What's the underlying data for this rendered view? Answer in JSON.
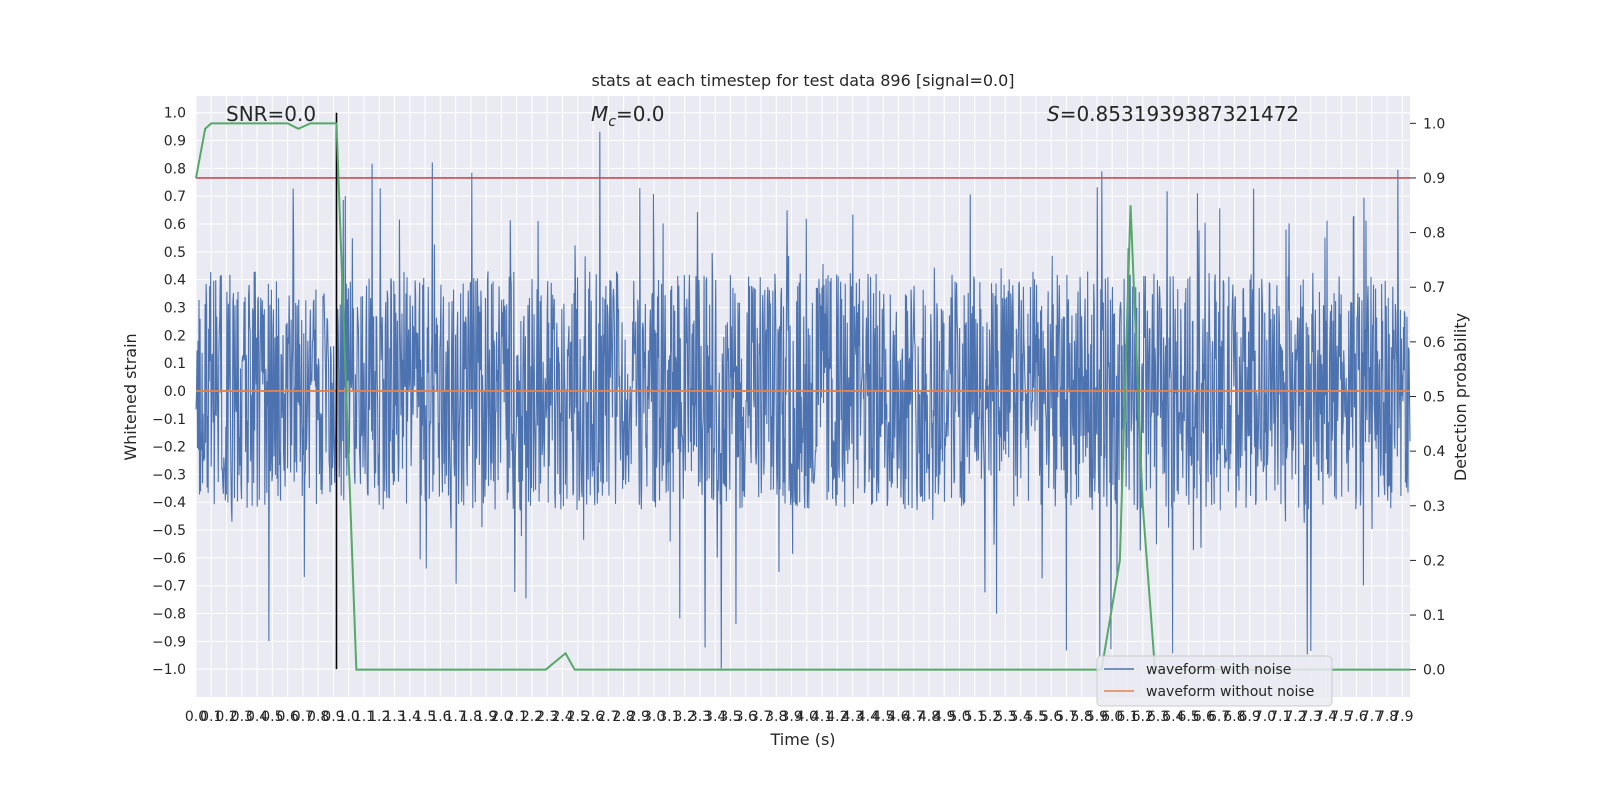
{
  "chart_data": {
    "type": "line",
    "title": "stats at each timestep for test data 896 [signal=0.0]",
    "xlabel": "Time (s)",
    "ylabel": "Whitened strain",
    "y2label": "Detection probability",
    "xlim": [
      0.0,
      7.95
    ],
    "ylim": [
      -1.1,
      1.06
    ],
    "y2lim": [
      -0.05,
      1.05
    ],
    "x_ticks": [
      "0.0",
      "0.1",
      "0.2",
      "0.3",
      "0.4",
      "0.5",
      "0.6",
      "0.7",
      "0.8",
      "0.9",
      "1.0",
      "1.1",
      "1.2",
      "1.3",
      "1.4",
      "1.5",
      "1.6",
      "1.7",
      "1.8",
      "1.9",
      "2.0",
      "2.1",
      "2.2",
      "2.3",
      "2.4",
      "2.5",
      "2.6",
      "2.7",
      "2.8",
      "2.9",
      "3.0",
      "3.1",
      "3.2",
      "3.3",
      "3.4",
      "3.5",
      "3.6",
      "3.7",
      "3.8",
      "3.9",
      "4.0",
      "4.1",
      "4.2",
      "4.3",
      "4.4",
      "4.5",
      "4.6",
      "4.7",
      "4.8",
      "4.9",
      "5.0",
      "5.1",
      "5.2",
      "5.3",
      "5.4",
      "5.5",
      "5.6",
      "5.7",
      "5.8",
      "5.9",
      "6.0",
      "6.1",
      "6.2",
      "6.3",
      "6.4",
      "6.5",
      "6.6",
      "6.7",
      "6.8",
      "6.9",
      "7.0",
      "7.1",
      "7.2",
      "7.3",
      "7.4",
      "7.5",
      "7.6",
      "7.7",
      "7.8",
      "7.9"
    ],
    "y_ticks": [
      "1.0",
      "0.9",
      "0.8",
      "0.7",
      "0.6",
      "0.5",
      "0.4",
      "0.3",
      "0.2",
      "0.1",
      "0.0",
      "-0.1",
      "-0.2",
      "-0.3",
      "-0.4",
      "-0.5",
      "-0.6",
      "-0.7",
      "-0.8",
      "-0.9",
      "-1.0"
    ],
    "y2_ticks": [
      "1.0",
      "0.9",
      "0.8",
      "0.7",
      "0.6",
      "0.5",
      "0.4",
      "0.3",
      "0.2",
      "0.1",
      "0.0"
    ],
    "annotations": {
      "snr": "SNR=0.0",
      "mc_symbol": "M",
      "mc_sub": "c",
      "mc_value": "=0.0",
      "s_symbol": "S",
      "s_value": "=0.8531939387321472"
    },
    "threshold": {
      "value": 0.9,
      "color": "#c44e52"
    },
    "marker_x": 0.92,
    "series": [
      {
        "name": "waveform with noise",
        "color": "#4c72b0",
        "envelope_typical": [
          -0.43,
          0.43
        ],
        "extreme_range": [
          -1.0,
          0.94
        ]
      },
      {
        "name": "waveform without noise",
        "color": "#dd8452",
        "value": 0.0
      }
    ],
    "detection_probability": {
      "color": "#55a868",
      "x": [
        0.0,
        0.06,
        0.1,
        0.3,
        0.6,
        0.67,
        0.75,
        0.92,
        1.05,
        2.29,
        2.42,
        2.48,
        5.93,
        6.05,
        6.12,
        6.2,
        6.28,
        7.95
      ],
      "y": [
        0.9,
        0.99,
        1.0,
        1.0,
        1.0,
        0.99,
        1.0,
        1.0,
        0.0,
        0.0,
        0.03,
        0.0,
        0.0,
        0.2,
        0.85,
        0.3,
        0.0,
        0.0
      ]
    },
    "legend_position": "lower-right",
    "grid": true
  }
}
